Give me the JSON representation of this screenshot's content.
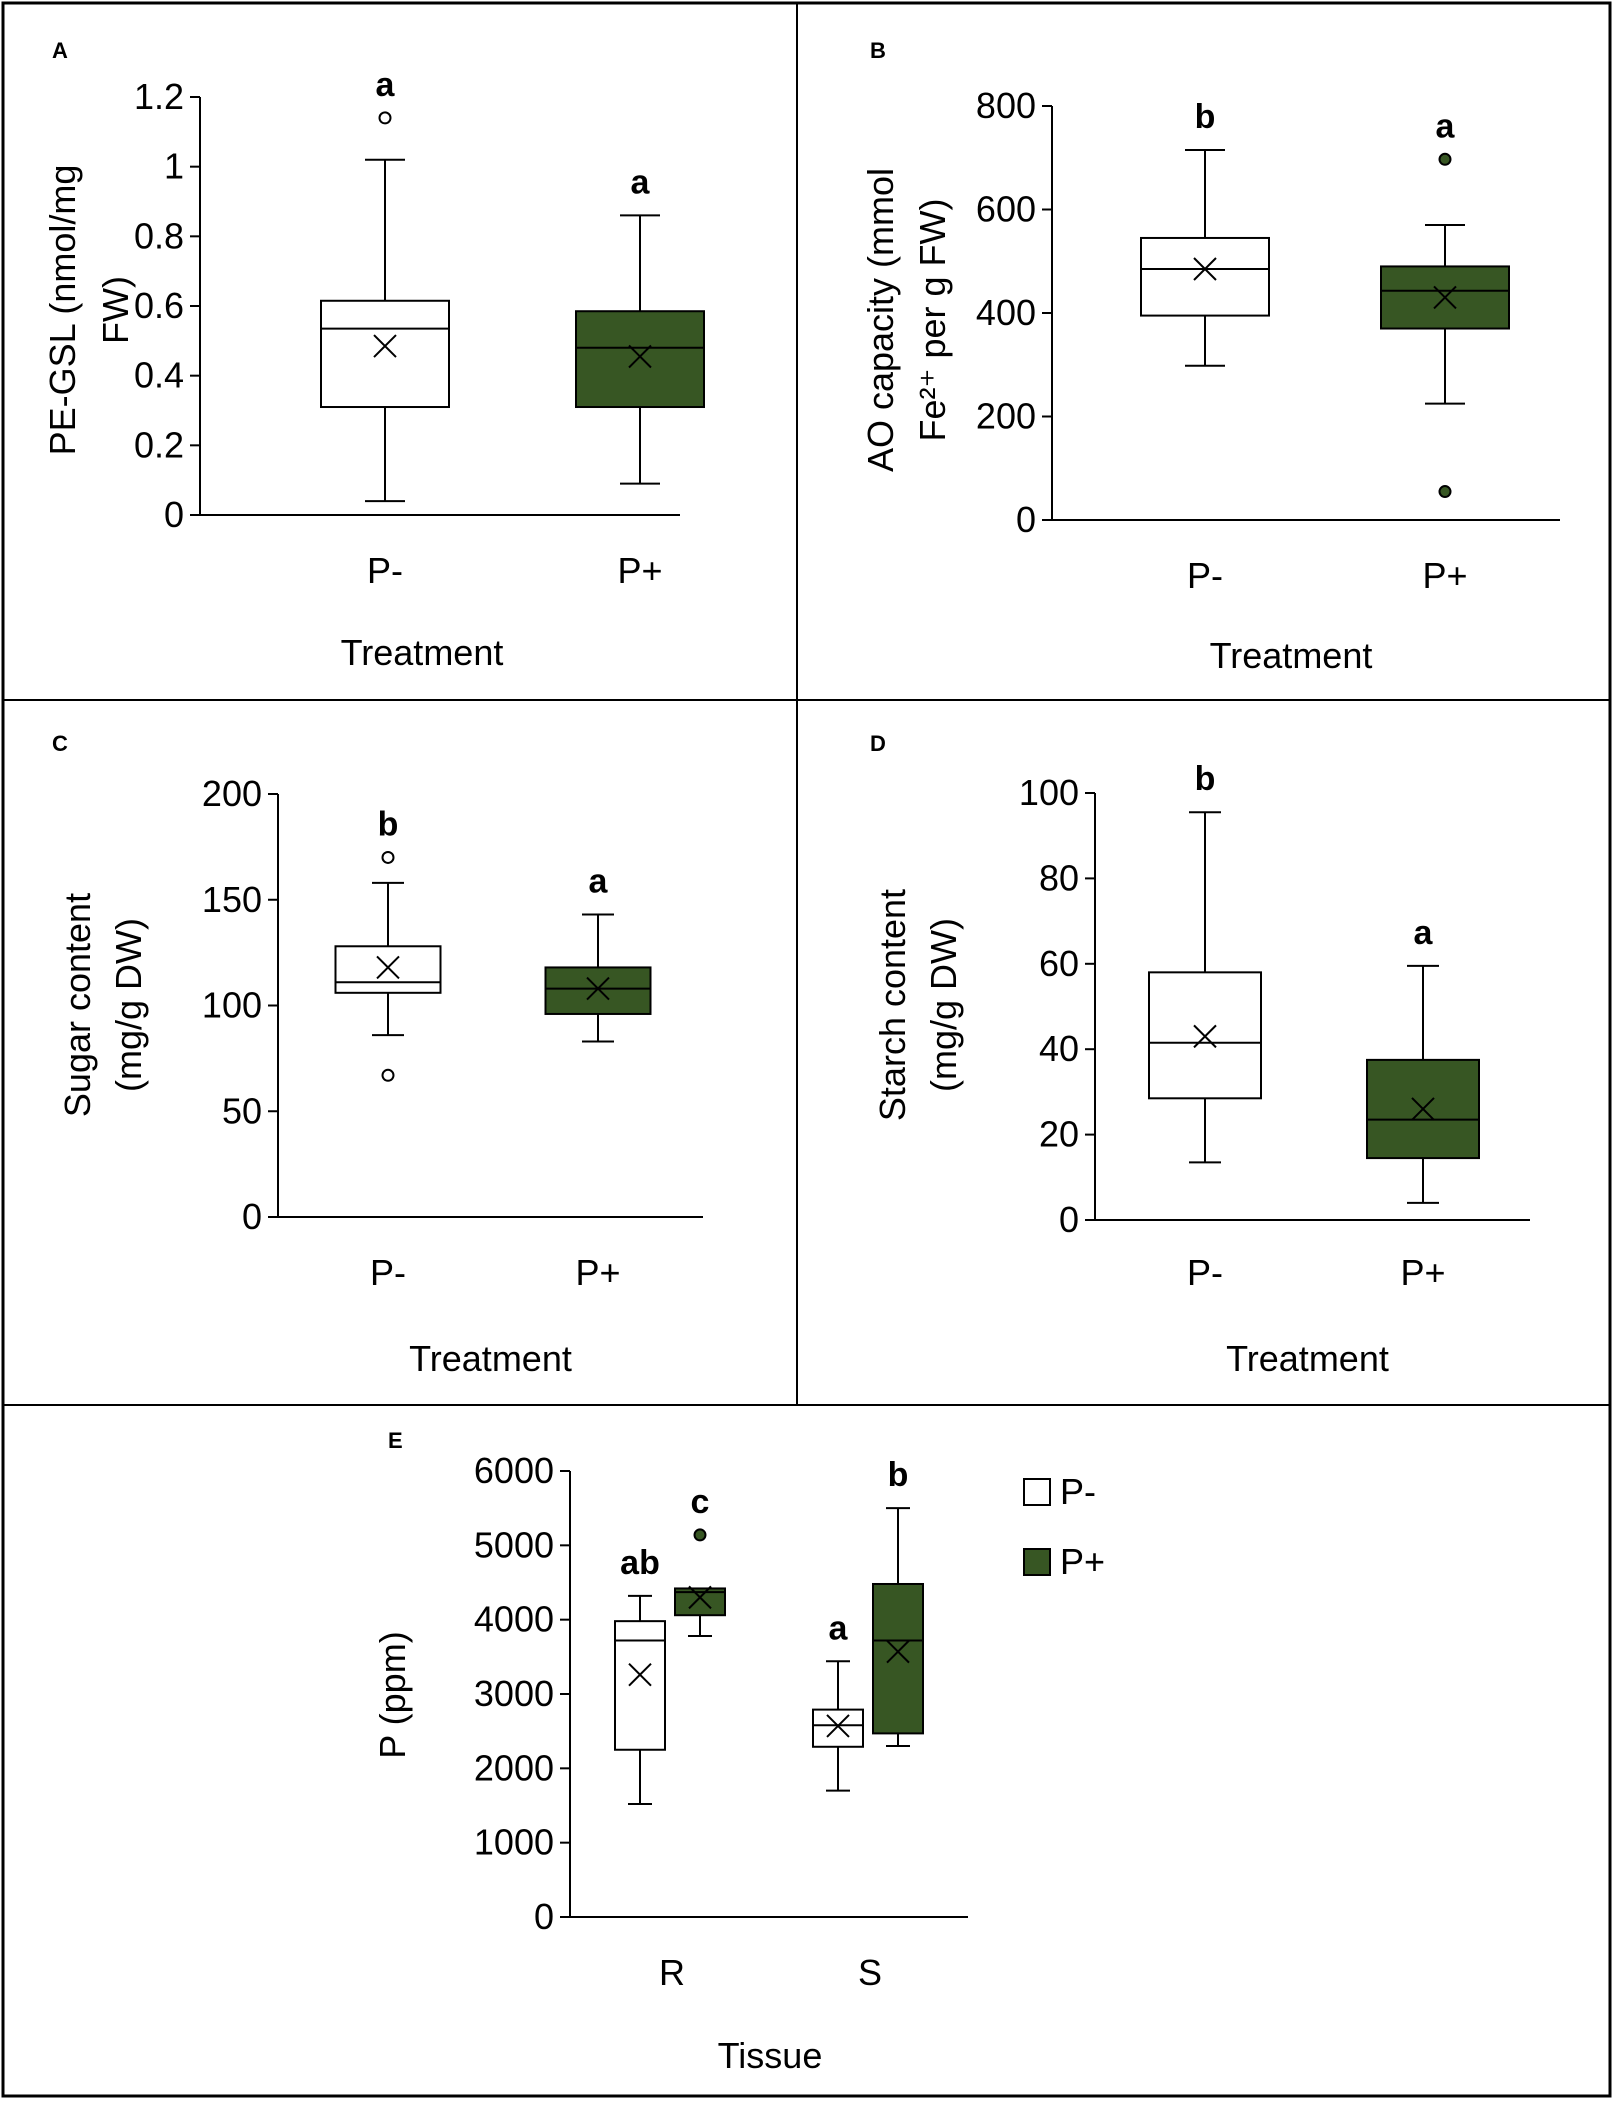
{
  "colors": {
    "p_minus_fill": "#ffffff",
    "p_plus_fill": "#375623",
    "line": "#000000"
  },
  "chart_data": [
    {
      "id": "A",
      "type": "box",
      "panel_label": "A",
      "ylabel_lines": [
        "PE-GSL (nmol/mg",
        "FW)"
      ],
      "xlabel": "Treatment",
      "ylim": [
        0,
        1.2
      ],
      "yticks": [
        0,
        0.2,
        0.4,
        0.6,
        0.8,
        1,
        1.2
      ],
      "ytick_labels": [
        "0",
        "0.2",
        "0.4",
        "0.6",
        "0.8",
        "1",
        "1.2"
      ],
      "categories": [
        "P-",
        "P+"
      ],
      "boxes": [
        {
          "category": "P-",
          "series": "P-",
          "min": 0.04,
          "q1": 0.31,
          "median": 0.535,
          "q3": 0.615,
          "max": 1.02,
          "mean": 0.485,
          "outliers": [
            1.14
          ],
          "letter": "a"
        },
        {
          "category": "P+",
          "series": "P+",
          "min": 0.09,
          "q1": 0.31,
          "median": 0.48,
          "q3": 0.585,
          "max": 0.86,
          "mean": 0.455,
          "outliers": [],
          "letter": "a"
        }
      ]
    },
    {
      "id": "B",
      "type": "box",
      "panel_label": "B",
      "ylabel_lines": [
        "AO capacity (mmol",
        "Fe²⁺ per g FW)"
      ],
      "xlabel": "Treatment",
      "ylim": [
        0,
        800
      ],
      "yticks": [
        0,
        200,
        400,
        600,
        800
      ],
      "ytick_labels": [
        "0",
        "200",
        "400",
        "600",
        "800"
      ],
      "categories": [
        "P-",
        "P+"
      ],
      "boxes": [
        {
          "category": "P-",
          "series": "P-",
          "min": 298,
          "q1": 395,
          "median": 485,
          "q3": 545,
          "max": 715,
          "mean": 485,
          "outliers": [],
          "letter": "b"
        },
        {
          "category": "P+",
          "series": "P+",
          "min": 225,
          "q1": 370,
          "median": 443,
          "q3": 490,
          "max": 570,
          "mean": 430,
          "outliers": [
            697,
            55
          ],
          "letter": "a"
        }
      ]
    },
    {
      "id": "C",
      "type": "box",
      "panel_label": "C",
      "ylabel_lines": [
        "Sugar content",
        "(mg/g DW)"
      ],
      "xlabel": "Treatment",
      "ylim": [
        0,
        200
      ],
      "yticks": [
        0,
        50,
        100,
        150,
        200
      ],
      "ytick_labels": [
        "0",
        "50",
        "100",
        "150",
        "200"
      ],
      "categories": [
        "P-",
        "P+"
      ],
      "boxes": [
        {
          "category": "P-",
          "series": "P-",
          "min": 86,
          "q1": 106,
          "median": 111,
          "q3": 128,
          "max": 158,
          "mean": 118,
          "outliers": [
            170,
            67
          ],
          "letter": "b"
        },
        {
          "category": "P+",
          "series": "P+",
          "min": 83,
          "q1": 96,
          "median": 108,
          "q3": 118,
          "max": 143,
          "mean": 108,
          "outliers": [],
          "letter": "a"
        }
      ]
    },
    {
      "id": "D",
      "type": "box",
      "panel_label": "D",
      "ylabel_lines": [
        "Starch content",
        "(mg/g DW)"
      ],
      "xlabel": "Treatment",
      "ylim": [
        0,
        100
      ],
      "yticks": [
        0,
        20,
        40,
        60,
        80,
        100
      ],
      "ytick_labels": [
        "0",
        "20",
        "40",
        "60",
        "80",
        "100"
      ],
      "categories": [
        "P-",
        "P+"
      ],
      "boxes": [
        {
          "category": "P-",
          "series": "P-",
          "min": 13.5,
          "q1": 28.5,
          "median": 41.5,
          "q3": 58,
          "max": 95.5,
          "mean": 43,
          "outliers": [],
          "letter": "b"
        },
        {
          "category": "P+",
          "series": "P+",
          "min": 4,
          "q1": 14.5,
          "median": 23.5,
          "q3": 37.5,
          "max": 59.5,
          "mean": 26,
          "outliers": [],
          "letter": "a"
        }
      ]
    },
    {
      "id": "E",
      "type": "box",
      "panel_label": "E",
      "ylabel_lines": [
        "P (ppm)"
      ],
      "xlabel": "Tissue",
      "ylim": [
        0,
        6000
      ],
      "yticks": [
        0,
        1000,
        2000,
        3000,
        4000,
        5000,
        6000
      ],
      "ytick_labels": [
        "0",
        "1000",
        "2000",
        "3000",
        "4000",
        "5000",
        "6000"
      ],
      "categories": [
        "R",
        "S"
      ],
      "legend": [
        {
          "series": "P-",
          "label": "P-"
        },
        {
          "series": "P+",
          "label": "P+"
        }
      ],
      "boxes": [
        {
          "category": "R",
          "series": "P-",
          "min": 1520,
          "q1": 2250,
          "median": 3720,
          "q3": 3980,
          "max": 4320,
          "mean": 3260,
          "outliers": [],
          "letter": "ab"
        },
        {
          "category": "R",
          "series": "P+",
          "min": 3780,
          "q1": 4060,
          "median": 4370,
          "q3": 4420,
          "max": 4420,
          "mean": 4300,
          "outliers": [
            5140
          ],
          "letter": "c"
        },
        {
          "category": "S",
          "series": "P-",
          "min": 1700,
          "q1": 2290,
          "median": 2580,
          "q3": 2790,
          "max": 3440,
          "mean": 2570,
          "outliers": [],
          "letter": "a"
        },
        {
          "category": "S",
          "series": "P+",
          "min": 2300,
          "q1": 2470,
          "median": 3720,
          "q3": 4480,
          "max": 5500,
          "mean": 3570,
          "outliers": [],
          "letter": "b"
        }
      ]
    }
  ]
}
